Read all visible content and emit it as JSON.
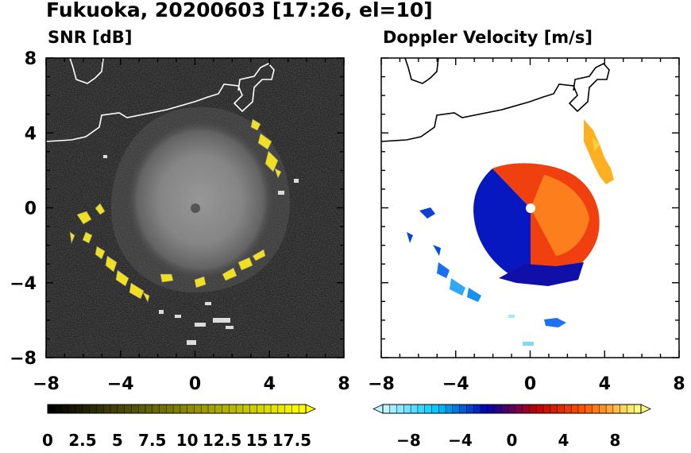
{
  "title": "Fukuoka, 20200603 [17:26, el=10]",
  "chart_data": [
    {
      "type": "heatmap",
      "title": "SNR [dB]",
      "xlim": [
        -8,
        8
      ],
      "ylim": [
        -8,
        8
      ],
      "x_ticks": [
        "−8",
        "−4",
        "0",
        "4",
        "8"
      ],
      "y_ticks": [
        "8",
        "4",
        "0",
        "−4",
        "−8"
      ],
      "colorbar": {
        "range": [
          0,
          18.5
        ],
        "tick_labels": [
          "0",
          "2.5",
          "5",
          "7.5",
          "10",
          "12.5",
          "15",
          "17.5"
        ],
        "colors": [
          "#000000",
          "#ffff00"
        ],
        "extend": "max"
      }
    },
    {
      "type": "heatmap",
      "title": "Doppler Velocity [m/s]",
      "xlim": [
        -8,
        8
      ],
      "ylim": [
        -8,
        8
      ],
      "x_ticks": [
        "−8",
        "−4",
        "0",
        "4",
        "8"
      ],
      "y_ticks": [
        "8",
        "4",
        "0",
        "−4",
        "−8"
      ],
      "colorbar": {
        "range": [
          -10,
          10
        ],
        "tick_labels": [
          "−8",
          "−4",
          "0",
          "4",
          "8"
        ],
        "colors": [
          "#bff5ff",
          "#00c8ff",
          "#0000b0",
          "#c00000",
          "#ff6000",
          "#ffff80"
        ],
        "extend": "both"
      }
    }
  ]
}
